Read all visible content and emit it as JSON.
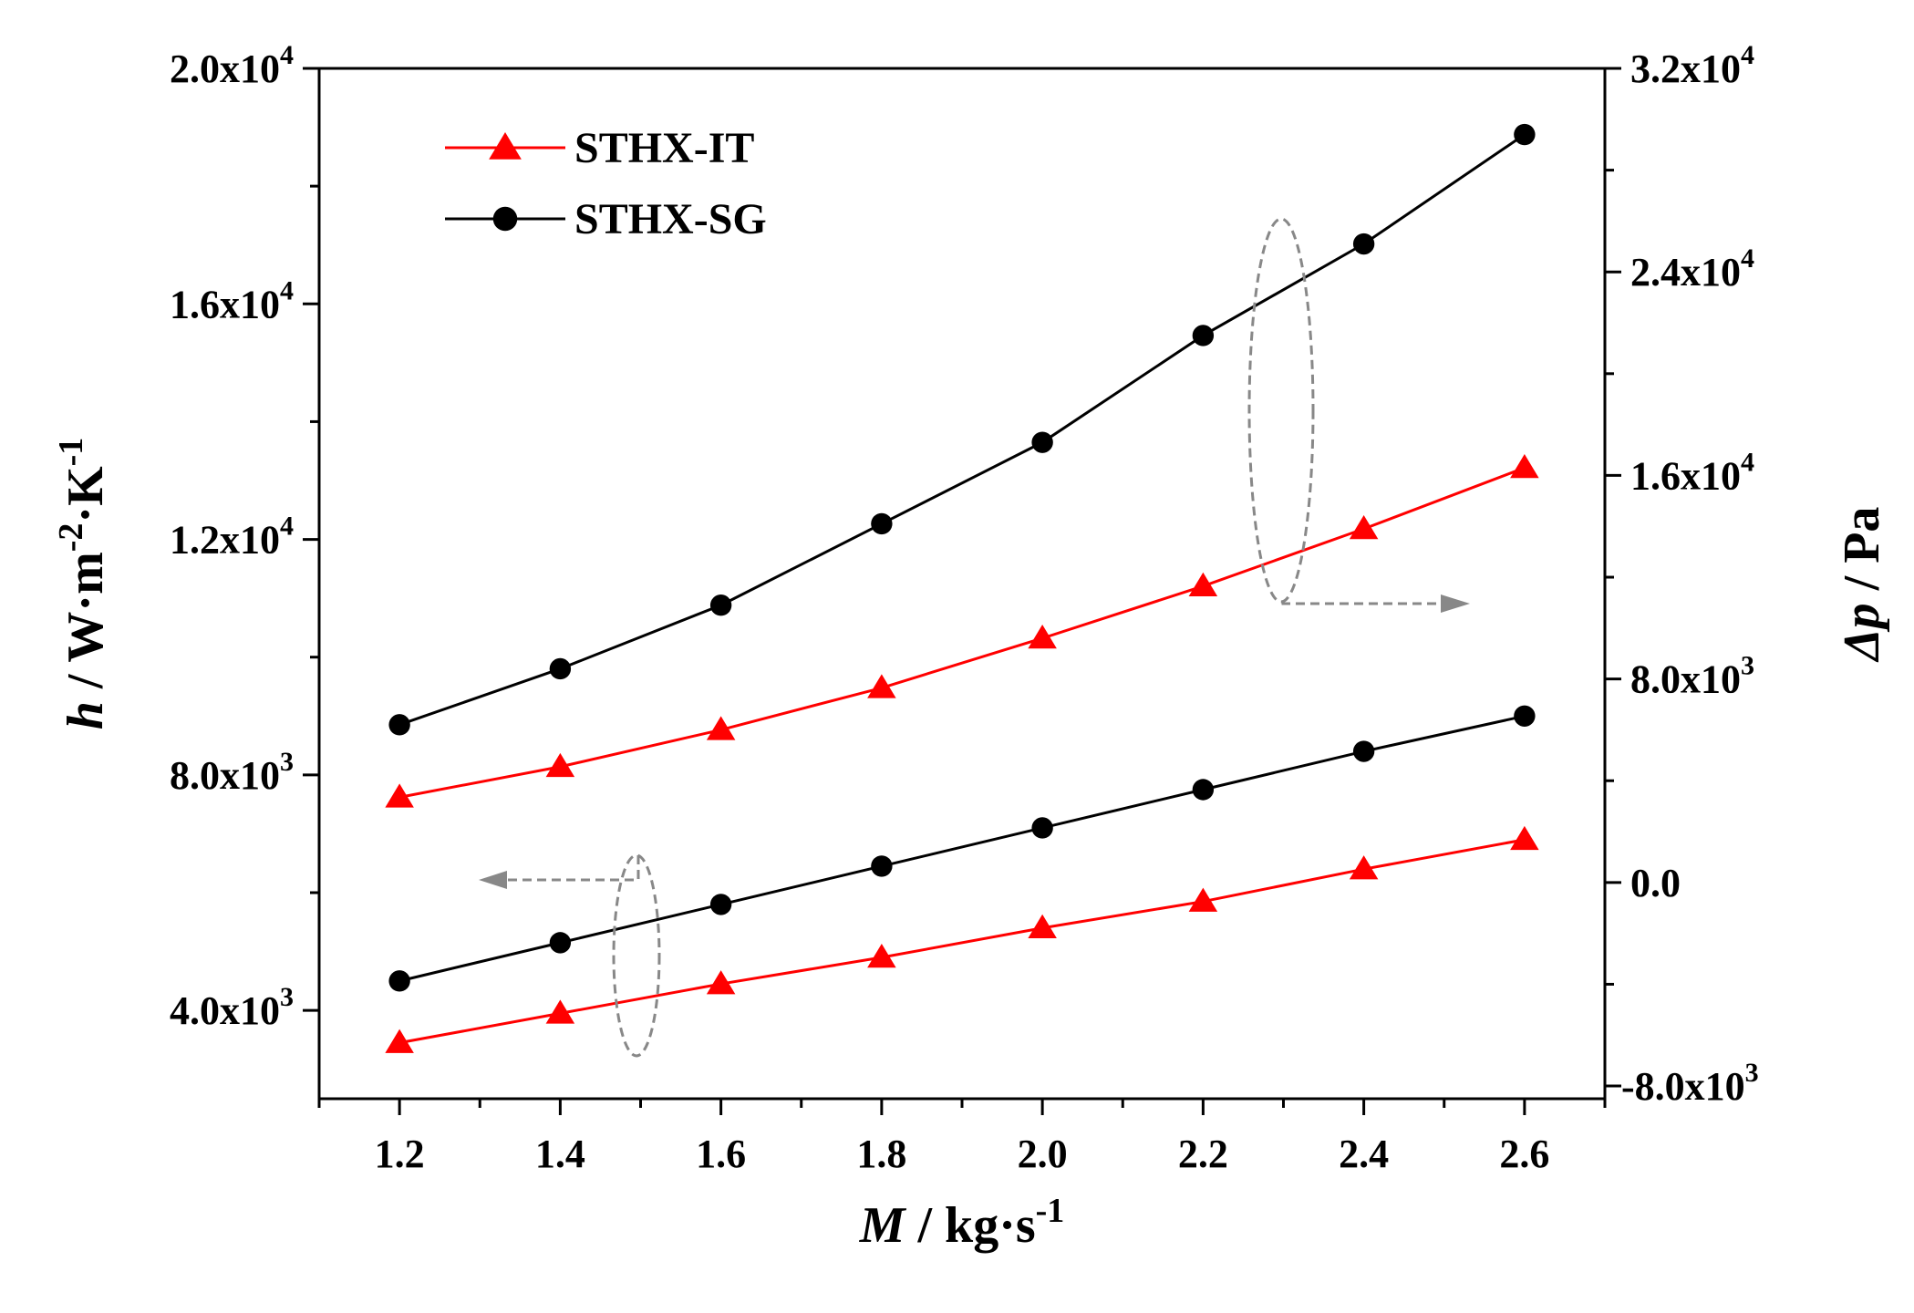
{
  "chart_data": {
    "type": "line",
    "x": [
      1.2,
      1.4,
      1.6,
      1.8,
      2.0,
      2.2,
      2.4,
      2.6
    ],
    "x_ticks": [
      "1.2",
      "1.4",
      "1.6",
      "1.8",
      "2.0",
      "2.2",
      "2.4",
      "2.6"
    ],
    "xlim": [
      1.1,
      2.7
    ],
    "xlabel": {
      "symbol": "M",
      "unit": " / kg·s",
      "exp": "-1"
    },
    "y_left": {
      "lim": [
        2500,
        20000
      ],
      "ticks": [
        {
          "value": 4000,
          "mant": "4.0x10",
          "exp": "3"
        },
        {
          "value": 8000,
          "mant": "8.0x10",
          "exp": "3"
        },
        {
          "value": 12000,
          "mant": "1.2x10",
          "exp": "4"
        },
        {
          "value": 16000,
          "mant": "1.6x10",
          "exp": "4"
        },
        {
          "value": 20000,
          "mant": "2.0x10",
          "exp": "4"
        }
      ],
      "label": {
        "symbol": "h",
        "unit1": " / W·m",
        "exp1": "-2",
        "unit2": "·K",
        "exp2": "-1"
      }
    },
    "y_right": {
      "lim": [
        -8500,
        32000
      ],
      "ticks": [
        {
          "value": -8000,
          "mant": "-8.0x10",
          "exp": "3"
        },
        {
          "value": 0,
          "mant": "0.0",
          "exp": ""
        },
        {
          "value": 8000,
          "mant": "8.0x10",
          "exp": "3"
        },
        {
          "value": 16000,
          "mant": "1.6x10",
          "exp": "4"
        },
        {
          "value": 24000,
          "mant": "2.4x10",
          "exp": "4"
        },
        {
          "value": 32000,
          "mant": "3.2x10",
          "exp": "4"
        }
      ],
      "label": {
        "symbol": "Δp",
        "unit": " / Pa"
      }
    },
    "series": [
      {
        "name": "STHX-IT",
        "axis": "left",
        "color": "#ff0000",
        "marker": "triangle",
        "values": [
          3450,
          3950,
          4450,
          4900,
          5400,
          5850,
          6400,
          6900
        ]
      },
      {
        "name": "STHX-SG",
        "axis": "left",
        "color": "#000000",
        "marker": "circle",
        "values": [
          4500,
          5150,
          5800,
          6450,
          7100,
          7750,
          8400,
          9000
        ]
      },
      {
        "name": "STHX-IT",
        "axis": "right",
        "color": "#ff0000",
        "marker": "triangle",
        "values": [
          3350,
          4550,
          6000,
          7650,
          9600,
          11650,
          13900,
          16300
        ]
      },
      {
        "name": "STHX-SG",
        "axis": "right",
        "color": "#000000",
        "marker": "circle",
        "values": [
          6200,
          8400,
          10900,
          14100,
          17300,
          21500,
          25100,
          29400
        ]
      }
    ],
    "legend": {
      "position": "top-left",
      "entries": [
        {
          "label": "STHX-IT",
          "color": "#ff0000",
          "marker": "triangle"
        },
        {
          "label": "STHX-SG",
          "color": "#000000",
          "marker": "circle"
        }
      ]
    },
    "annotations": [
      {
        "kind": "ellipse-arrow",
        "direction": "left",
        "series_ref": "lower pair (h)"
      },
      {
        "kind": "ellipse-arrow",
        "direction": "right",
        "series_ref": "upper pair (Δp)"
      }
    ],
    "annotation_color": "#888888"
  }
}
